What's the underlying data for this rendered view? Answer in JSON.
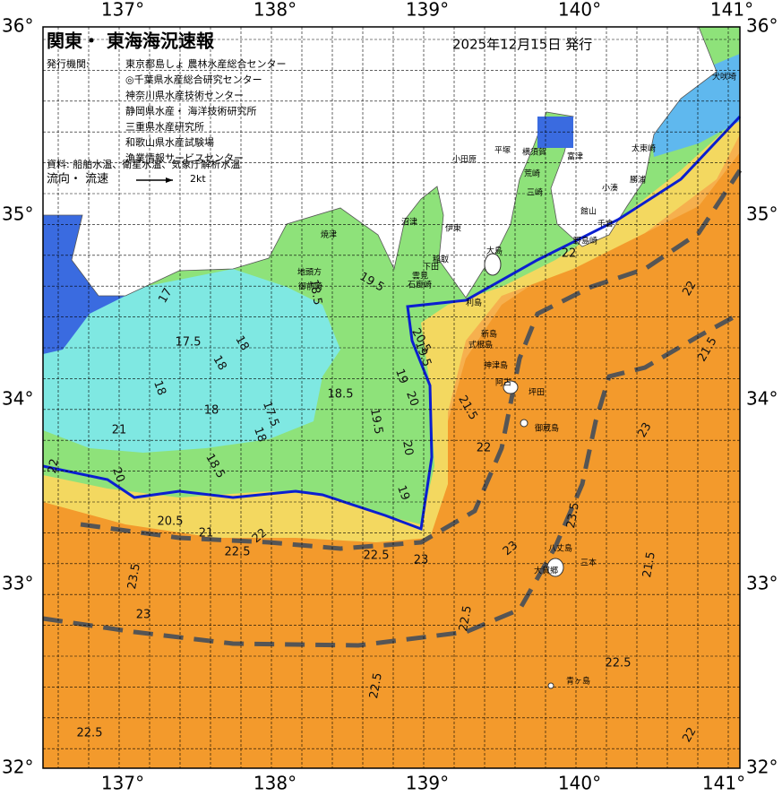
{
  "header": {
    "title": "関東・ 東海海況速報",
    "date": "2025年12月15日 発行",
    "agency_label": "発行機関:"
  },
  "agencies": [
    "東京都島しょ 農林水産総合センター",
    "◎千葉県水産総合研究センター",
    "神奈川県水産技術センター",
    "静岡県水産・ 海洋技術研究所",
    "三重県水産研究所",
    "和歌山県水産試験場",
    "漁業情報サービスセンター"
  ],
  "source": "資料: 船舶水温、衛星水温、気象庁解析水温",
  "legend": {
    "label": "流向・ 流速",
    "scale": "2kt"
  },
  "lon_labels": [
    "137°",
    "138°",
    "139°",
    "140°",
    "141°"
  ],
  "lat_labels": [
    "36°",
    "35°",
    "34°",
    "33°",
    "32°"
  ],
  "place_names": [
    "犬吠埼",
    "太東崎",
    "勝浦",
    "小湊",
    "千倉",
    "野島崎",
    "館山",
    "富津",
    "荒崎",
    "三崎",
    "横須賀",
    "平塚",
    "小田原",
    "伊東",
    "沼津",
    "焼津",
    "地頭方",
    "御前崎",
    "稲取",
    "下田",
    "雲見",
    "石廊崎",
    "大島",
    "利島",
    "新島",
    "式根島",
    "神津島",
    "阿古",
    "坪田",
    "御蔵島",
    "八丈島",
    "三本",
    "大賀郷",
    "青ヶ島"
  ],
  "contour_labels": [
    "17",
    "17.5",
    "18",
    "18",
    "18",
    "18",
    "18",
    "17.5",
    "18.5",
    "18.5",
    "18.5",
    "19",
    "19",
    "19.5",
    "19.5",
    "19.5",
    "20",
    "20",
    "20",
    "20.5",
    "20.5",
    "21",
    "21",
    "21.5",
    "21.5",
    "22",
    "22",
    "22",
    "22",
    "22.5",
    "22.5",
    "22.5",
    "22.5",
    "22.5",
    "23",
    "23",
    "23",
    "23",
    "23.5",
    "23.5",
    "21.5",
    "22",
    "22.5",
    "22"
  ]
}
